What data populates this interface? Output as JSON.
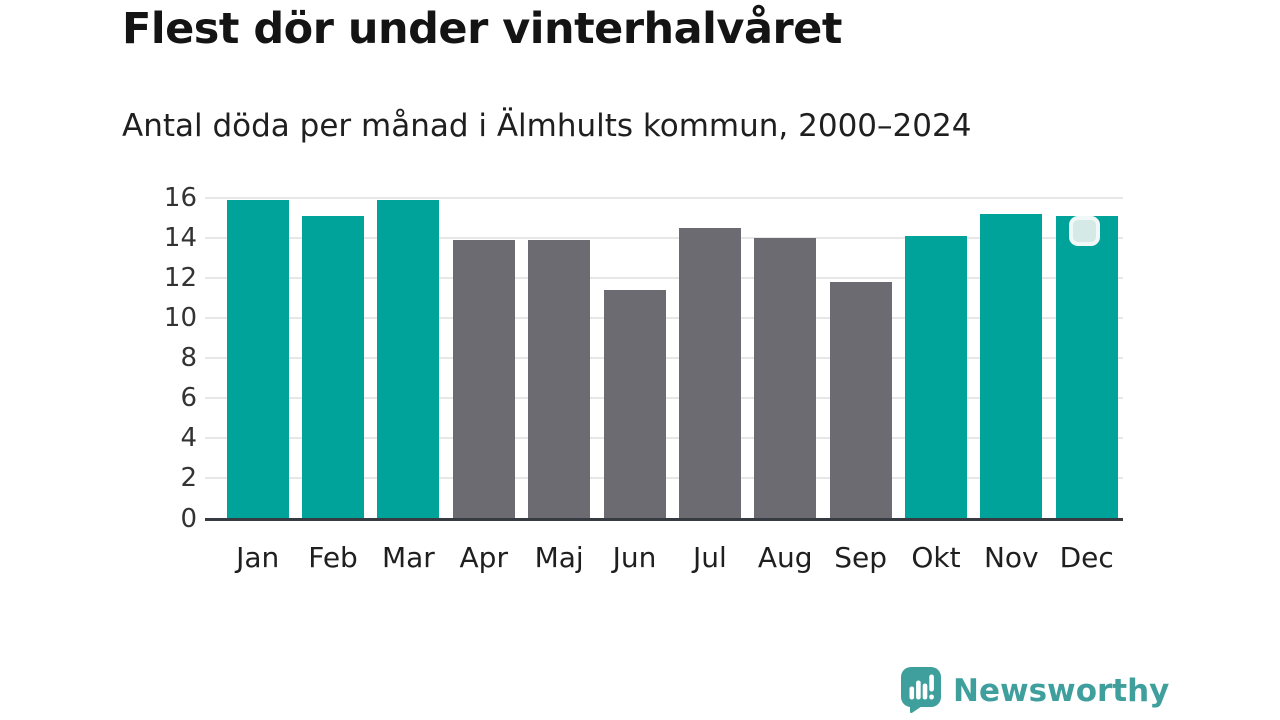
{
  "chart_data": {
    "type": "bar",
    "title": "Flest dör under vinterhalvåret",
    "subtitle": "Antal döda per månad i Älmhults kommun, 2000–2024",
    "categories": [
      "Jan",
      "Feb",
      "Mar",
      "Apr",
      "Maj",
      "Jun",
      "Jul",
      "Aug",
      "Sep",
      "Okt",
      "Nov",
      "Dec"
    ],
    "values": [
      15.9,
      15.1,
      15.9,
      13.9,
      13.9,
      11.4,
      14.5,
      14.0,
      11.8,
      14.1,
      15.2,
      15.1
    ],
    "groups": [
      "winter",
      "winter",
      "winter",
      "summer",
      "summer",
      "summer",
      "summer",
      "summer",
      "summer",
      "winter",
      "winter",
      "winter"
    ],
    "palette": {
      "winter": "#00a39a",
      "summer": "#6c6b71"
    },
    "xlabel": "",
    "ylabel": "",
    "ylim": [
      0,
      16
    ],
    "yticks": [
      0,
      2,
      4,
      6,
      8,
      10,
      12,
      14,
      16
    ],
    "grid": "horizontal",
    "legend": "none",
    "axis": {
      "gridline_color": "#e7e7e7",
      "baseline_color": "#363a41",
      "tick_label_color": "#333333"
    }
  },
  "overlay_badge": {
    "icon": "rounded-square-badge",
    "fill": "#d5e9e6",
    "border": "#f0f9f7"
  },
  "footer": {
    "brand": "Newsworthy",
    "brand_color": "#3f9f9d",
    "logo_icon": "newsworthy-bar-chart-speech-bubble-icon"
  }
}
